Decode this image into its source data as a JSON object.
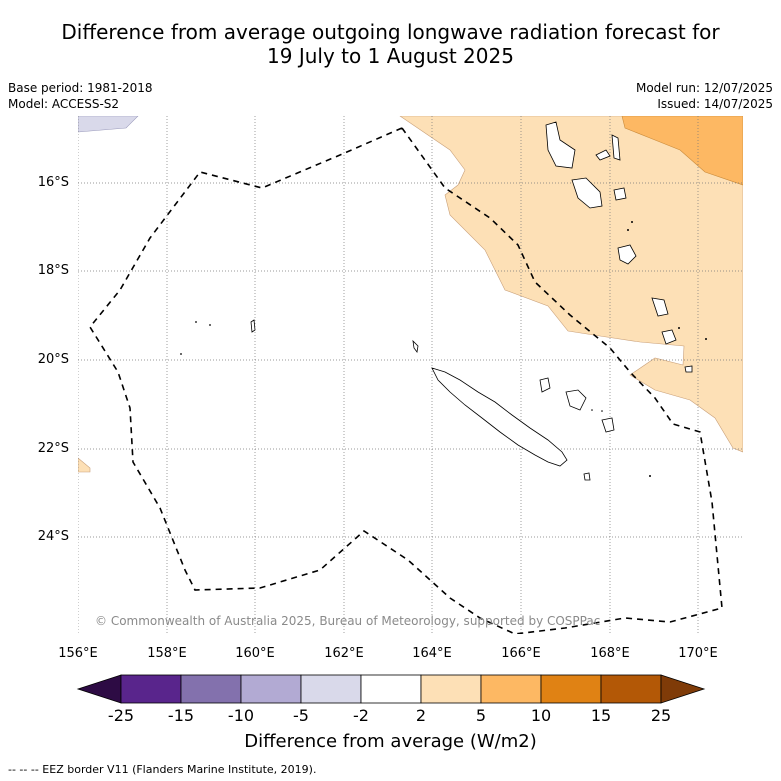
{
  "title_line1": "Difference from average outgoing longwave radiation forecast for",
  "title_line2": "19 July to 1 August 2025",
  "base_period": "Base period: 1981-2018",
  "model": "Model: ACCESS-S2",
  "model_run": "Model run: 12/07/2025",
  "issued": "Issued: 14/07/2025",
  "copyright": "© Commonwealth of Australia 2025, Bureau of Meteorology, supported by COSPPac",
  "lat_labels": [
    "16°S",
    "18°S",
    "20°S",
    "22°S",
    "24°S"
  ],
  "lon_labels": [
    "156°E",
    "158°E",
    "160°E",
    "162°E",
    "164°E",
    "166°E",
    "168°E",
    "170°E"
  ],
  "colorbar": {
    "ticks": [
      "-25",
      "-15",
      "-10",
      "-5",
      "-2",
      "2",
      "5",
      "10",
      "15",
      "25"
    ],
    "colors": [
      "#2d0b44",
      "#59258c",
      "#8371ad",
      "#b2aad3",
      "#d9d9ea",
      "#ffffff",
      "#fde0b6",
      "#fdb863",
      "#e08214",
      "#b35806",
      "#7f3b08"
    ],
    "title": "Difference from average (W/m2)"
  },
  "legend_footer": "-- -- -- EEZ border V11 (Flanders Marine Institute, 2019)."
}
